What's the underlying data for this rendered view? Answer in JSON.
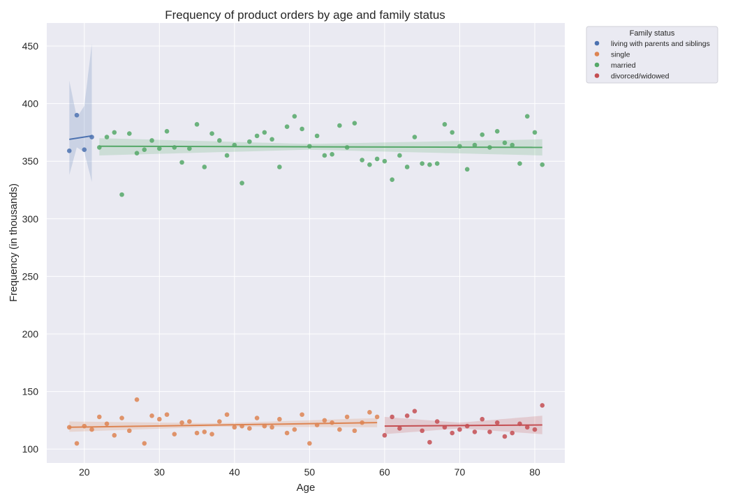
{
  "chart_data": {
    "type": "scatter",
    "title": "Frequency of product orders by age and family status",
    "xlabel": "Age",
    "ylabel": "Frequency (in thousands)",
    "xlim": [
      15,
      84
    ],
    "ylim": [
      88,
      470
    ],
    "xticks": [
      20,
      30,
      40,
      50,
      60,
      70,
      80
    ],
    "yticks": [
      100,
      150,
      200,
      250,
      300,
      350,
      400,
      450
    ],
    "grid": true,
    "legend": {
      "title": "Family status",
      "position": "outside-top-right"
    },
    "series": [
      {
        "name": "living with parents and siblings",
        "color": "#4c72b0",
        "x": [
          18,
          19,
          20,
          21
        ],
        "y": [
          359,
          390,
          360,
          371
        ],
        "trend": {
          "x": [
            18,
            21
          ],
          "y": [
            369,
            372
          ]
        },
        "band": {
          "x": [
            18,
            19,
            20,
            21
          ],
          "lower": [
            338,
            362,
            358,
            332
          ],
          "upper": [
            420,
            388,
            398,
            452
          ]
        }
      },
      {
        "name": "single",
        "color": "#dd8452",
        "x": [
          18,
          19,
          20,
          21,
          22,
          23,
          24,
          25,
          26,
          27,
          28,
          29,
          30,
          31,
          32,
          33,
          34,
          35,
          36,
          37,
          38,
          39,
          40,
          41,
          42,
          43,
          44,
          45,
          46,
          47,
          48,
          49,
          50,
          51,
          52,
          53,
          54,
          55,
          56,
          57,
          58,
          59
        ],
        "y": [
          119,
          105,
          120,
          117,
          128,
          122,
          112,
          127,
          116,
          143,
          105,
          129,
          126,
          130,
          113,
          123,
          124,
          114,
          115,
          113,
          124,
          130,
          119,
          120,
          118,
          127,
          120,
          119,
          126,
          114,
          117,
          130,
          105,
          121,
          125,
          123,
          117,
          128,
          116,
          123,
          132,
          128
        ],
        "trend": {
          "x": [
            18,
            59
          ],
          "y": [
            119,
            123
          ]
        },
        "band": {
          "x": [
            18,
            38,
            59
          ],
          "lower": [
            115,
            119.5,
            119
          ],
          "upper": [
            124,
            122.5,
            127
          ]
        }
      },
      {
        "name": "married",
        "color": "#55a868",
        "x": [
          22,
          23,
          24,
          25,
          26,
          27,
          28,
          29,
          30,
          31,
          32,
          33,
          34,
          35,
          36,
          37,
          38,
          39,
          40,
          41,
          42,
          43,
          44,
          45,
          46,
          47,
          48,
          49,
          50,
          51,
          52,
          53,
          54,
          55,
          56,
          57,
          58,
          59,
          60,
          61,
          62,
          63,
          64,
          65,
          66,
          67,
          68,
          69,
          70,
          71,
          72,
          73,
          74,
          75,
          76,
          77,
          78,
          79,
          80,
          81
        ],
        "y": [
          362,
          371,
          375,
          321,
          374,
          357,
          360,
          368,
          361,
          376,
          362,
          349,
          361,
          382,
          345,
          374,
          368,
          355,
          364,
          331,
          367,
          372,
          375,
          369,
          345,
          380,
          389,
          378,
          363,
          372,
          355,
          356,
          381,
          362,
          383,
          351,
          347,
          352,
          350,
          334,
          355,
          345,
          371,
          348,
          347,
          348,
          382,
          375,
          363,
          343,
          364,
          373,
          362,
          376,
          366,
          364,
          348,
          389,
          375,
          347
        ],
        "trend": {
          "x": [
            22,
            81
          ],
          "y": [
            363,
            362
          ]
        },
        "band": {
          "x": [
            22,
            50,
            81
          ],
          "lower": [
            355,
            360,
            355
          ],
          "upper": [
            370,
            365,
            369
          ]
        }
      },
      {
        "name": "divorced/widowed",
        "color": "#c44e52",
        "x": [
          60,
          61,
          62,
          63,
          64,
          65,
          66,
          67,
          68,
          69,
          70,
          71,
          72,
          73,
          74,
          75,
          76,
          77,
          78,
          79,
          80,
          81
        ],
        "y": [
          112,
          128,
          118,
          129,
          133,
          116,
          106,
          124,
          119,
          114,
          117,
          120,
          115,
          126,
          115,
          123,
          111,
          114,
          122,
          119,
          117,
          138
        ],
        "trend": {
          "x": [
            60,
            81
          ],
          "y": [
            120,
            121
          ]
        },
        "band": {
          "x": [
            60,
            70,
            81
          ],
          "lower": [
            113,
            118,
            113
          ],
          "upper": [
            128,
            123,
            129
          ]
        }
      }
    ]
  }
}
